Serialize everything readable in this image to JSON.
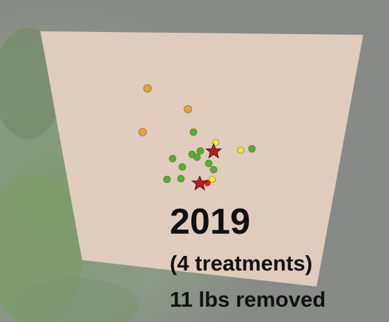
{
  "labels": {
    "year": "2019",
    "treatments": "(4 treatments)",
    "removed": "11 lbs removed"
  }
}
